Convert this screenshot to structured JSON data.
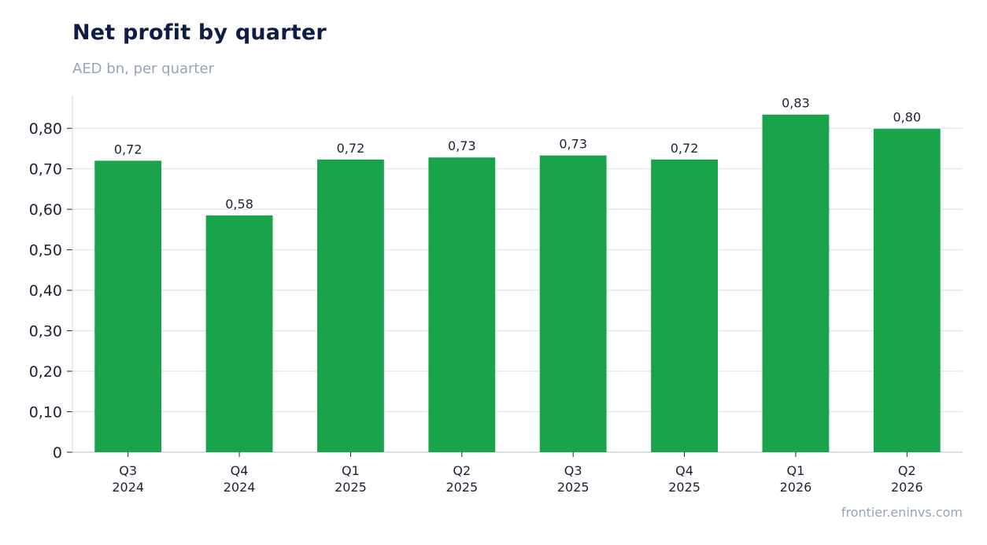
{
  "header": {
    "title": "Net profit by quarter",
    "subtitle": "AED bn, per quarter"
  },
  "footer": {
    "source": "frontier.eninvs.com"
  },
  "colors": {
    "bar": "#19a34a",
    "grid": "#e3e7ee",
    "axis": "#cfd5de",
    "text": "#1c2233"
  },
  "chart_data": {
    "type": "bar",
    "title": "Net profit by quarter",
    "subtitle": "AED bn, per quarter",
    "xlabel": "",
    "ylabel": "",
    "categories": [
      [
        "Q3",
        "2024"
      ],
      [
        "Q4",
        "2024"
      ],
      [
        "Q1",
        "2025"
      ],
      [
        "Q2",
        "2025"
      ],
      [
        "Q3",
        "2025"
      ],
      [
        "Q4",
        "2025"
      ],
      [
        "Q1",
        "2026"
      ],
      [
        "Q2",
        "2026"
      ]
    ],
    "values": [
      0.72,
      0.585,
      0.723,
      0.728,
      0.733,
      0.723,
      0.834,
      0.799
    ],
    "value_labels": [
      "0,72",
      "0,58",
      "0,72",
      "0,73",
      "0,73",
      "0,72",
      "0,83",
      "0,80"
    ],
    "yticks": [
      0,
      0.1,
      0.2,
      0.3,
      0.4,
      0.5,
      0.6,
      0.7,
      0.8
    ],
    "ytick_labels": [
      "0",
      "0,10",
      "0,20",
      "0,30",
      "0,40",
      "0,50",
      "0,60",
      "0,70",
      "0,80"
    ],
    "ylim": [
      0,
      0.88
    ],
    "grid": true,
    "legend": "none"
  }
}
